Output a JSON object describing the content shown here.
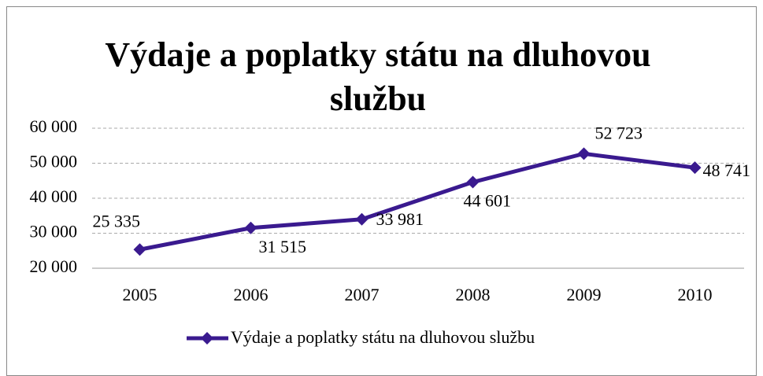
{
  "chart_data": {
    "type": "line",
    "title": "Výdaje a poplatky státu na dluhovou službu",
    "categories": [
      "2005",
      "2006",
      "2007",
      "2008",
      "2009",
      "2010"
    ],
    "series": [
      {
        "name": "Výdaje a poplatky státu na dluhovou službu",
        "color": "#3a1a8f",
        "values": [
          25335,
          31515,
          33981,
          44601,
          52723,
          48741
        ],
        "value_labels": [
          "25 335",
          "31 515",
          "33 981",
          "44 601",
          "52 723",
          "48 741"
        ]
      }
    ],
    "ylim": [
      20000,
      60000
    ],
    "yticks": [
      {
        "value": 20000,
        "label": "20 000"
      },
      {
        "value": 30000,
        "label": "30 000"
      },
      {
        "value": 40000,
        "label": "40 000"
      },
      {
        "value": 50000,
        "label": "50 000"
      },
      {
        "value": 60000,
        "label": "60 000"
      }
    ],
    "grid": true,
    "legend": "bottom"
  }
}
